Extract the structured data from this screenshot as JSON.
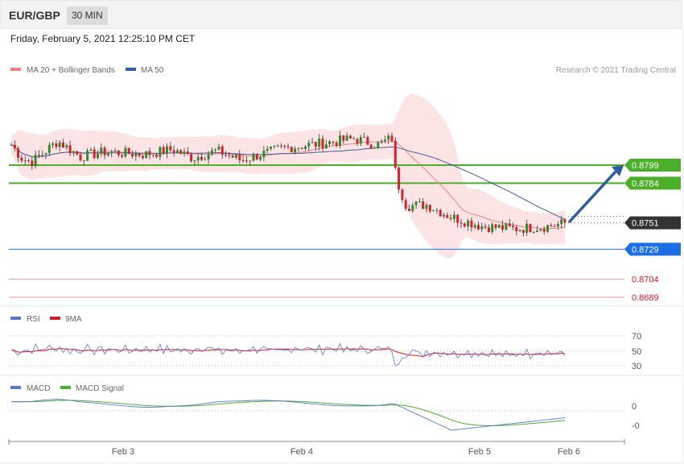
{
  "header": {
    "symbol": "EUR/GBP",
    "interval": "30 MIN"
  },
  "datetime": "Friday, February 5, 2021 12:25:10 PM CET",
  "copyright": "Research © 2021 Trading Central",
  "colors": {
    "green": "#4caf29",
    "dark": "#333333",
    "blue": "#1a6ee6",
    "red": "#e0161b",
    "bollinger": "#fcd9d9",
    "ma20": "#f08080",
    "ma50": "#3a5f9e",
    "arrow": "#2e5c9e",
    "candle_up": "#2e8b2e",
    "candle_down": "#d0252a",
    "rsi": "#5577dd",
    "rsi_ma": "#e0161b",
    "macd": "#5577dd",
    "macd_signal": "#4caf29"
  },
  "chart_data": [
    {
      "type": "candlestick",
      "title": "EUR/GBP",
      "legend": [
        {
          "name": "MA 20 + Bollinger Bands",
          "color": "#f08080"
        },
        {
          "name": "MA 50",
          "color": "#3a5f9e"
        }
      ],
      "legend_position": "top-left",
      "x_ticks": [
        "Feb 3",
        "Feb 4",
        "Feb 5",
        "Feb 6"
      ],
      "ylim": [
        0.8684,
        0.8818
      ],
      "current_price": 0.8751,
      "levels": [
        {
          "value": 0.8799,
          "label": "0.8799",
          "kind": "resistance"
        },
        {
          "value": 0.8784,
          "label": "0.8784",
          "kind": "resistance"
        },
        {
          "value": 0.8751,
          "label": "0.8751",
          "kind": "last"
        },
        {
          "value": 0.8729,
          "label": "0.8729",
          "kind": "pivot"
        },
        {
          "value": 0.8704,
          "label": "0.8704",
          "kind": "support"
        },
        {
          "value": 0.8689,
          "label": "0.8689",
          "kind": "support"
        }
      ],
      "forecast_target": 0.8799
    },
    {
      "type": "line",
      "legend": [
        {
          "name": "RSI",
          "color": "#5577dd"
        },
        {
          "name": "9MA",
          "color": "#e0161b"
        }
      ],
      "y_ticks": [
        "70",
        "50",
        "30"
      ],
      "ylim": [
        20,
        80
      ]
    },
    {
      "type": "line",
      "legend": [
        {
          "name": "MACD",
          "color": "#5577dd"
        },
        {
          "name": "MACD Signal",
          "color": "#4caf29"
        }
      ],
      "y_ticks": [
        "0",
        "-0"
      ]
    }
  ]
}
